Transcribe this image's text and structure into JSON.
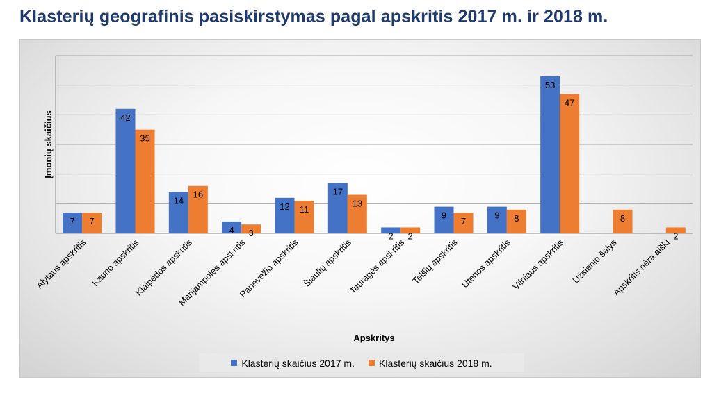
{
  "title": "Klasterių geografinis pasiskirstymas pagal apskritis 2017 m. ir 2018 m.",
  "chart_data": {
    "type": "bar",
    "title": "",
    "xlabel": "Apskritys",
    "ylabel": "Įmonių skaičius",
    "ylim": [
      0,
      60
    ],
    "y_gridlines": [
      10,
      20,
      30,
      40,
      50,
      60
    ],
    "y_tick_labels_shown": false,
    "grid": true,
    "legend_position": "bottom",
    "categories": [
      "Alytaus apskritis",
      "Kauno apskritis",
      "Klaipėdos apskritis",
      "Marijampolės apskritis",
      "Panevėžio apskritis",
      "Šiaulių apskritis",
      "Tauragės apskritis",
      "Telšių apskritis",
      "Utenos apskritis",
      "Vilniaus apskritis",
      "Užsienio šalys",
      "Apskritis nėra aiški"
    ],
    "series": [
      {
        "name": "Klasterių skaičius 2017 m.",
        "color": "#4472c4",
        "values": [
          7,
          42,
          14,
          4,
          12,
          17,
          2,
          9,
          9,
          53,
          null,
          null
        ]
      },
      {
        "name": "Klasterių skaičius 2018 m.",
        "color": "#ed7d31",
        "values": [
          7,
          35,
          16,
          3,
          11,
          13,
          2,
          7,
          8,
          47,
          8,
          2
        ]
      }
    ]
  }
}
